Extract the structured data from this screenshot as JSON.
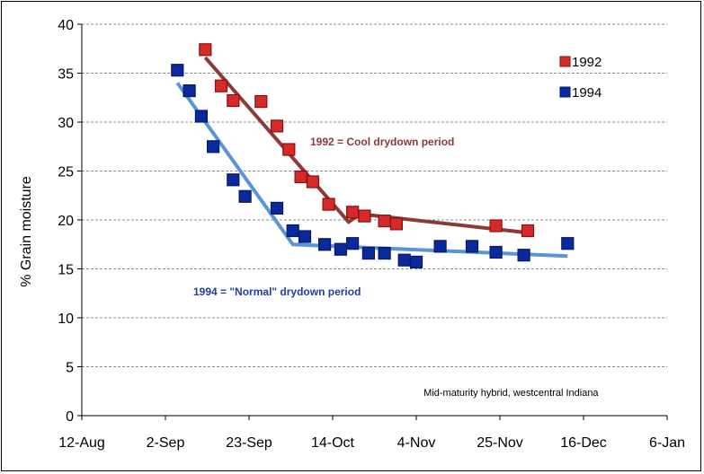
{
  "chart_data": {
    "type": "scatter",
    "ylabel": "% Grain moisture",
    "xlabel": "",
    "title": "",
    "x_tick_labels": [
      "12-Aug",
      "2-Sep",
      "23-Sep",
      "14-Oct",
      "4-Nov",
      "25-Nov",
      "16-Dec",
      "6-Jan"
    ],
    "x_ticks": [
      "2024-08-12",
      "2024-09-02",
      "2024-09-23",
      "2024-10-14",
      "2024-11-04",
      "2024-11-25",
      "2024-12-16",
      "2025-01-06"
    ],
    "y_ticks": [
      0,
      5,
      10,
      15,
      20,
      25,
      30,
      35,
      40
    ],
    "xlim": [
      "2024-08-12",
      "2025-01-06"
    ],
    "ylim": [
      0,
      40
    ],
    "grid": "horizontal dashed",
    "legend_position": "top-right",
    "series": [
      {
        "name": "1992",
        "color": "#d42a2a",
        "edge_color": "#8b1010",
        "points": [
          [
            "2024-09-12",
            37.4
          ],
          [
            "2024-09-16",
            33.7
          ],
          [
            "2024-09-19",
            32.2
          ],
          [
            "2024-09-26",
            32.1
          ],
          [
            "2024-09-30",
            29.6
          ],
          [
            "2024-10-03",
            27.2
          ],
          [
            "2024-10-06",
            24.4
          ],
          [
            "2024-10-09",
            23.9
          ],
          [
            "2024-10-13",
            21.6
          ],
          [
            "2024-10-19",
            20.8
          ],
          [
            "2024-10-22",
            20.4
          ],
          [
            "2024-10-27",
            19.9
          ],
          [
            "2024-10-30",
            19.6
          ],
          [
            "2024-11-24",
            19.4
          ],
          [
            "2024-12-02",
            18.9
          ]
        ],
        "trend_color": "#8b3a3a",
        "trend": [
          [
            "2024-09-12",
            36.6
          ],
          [
            "2024-10-18",
            19.8
          ],
          [
            "2024-10-21",
            20.6
          ],
          [
            "2024-12-02",
            18.7
          ]
        ]
      },
      {
        "name": "1994",
        "color": "#0a2a9c",
        "edge_color": "#06186a",
        "points": [
          [
            "2024-09-05",
            35.3
          ],
          [
            "2024-09-08",
            33.2
          ],
          [
            "2024-09-11",
            30.6
          ],
          [
            "2024-09-14",
            27.5
          ],
          [
            "2024-09-19",
            24.1
          ],
          [
            "2024-09-22",
            22.4
          ],
          [
            "2024-09-30",
            21.2
          ],
          [
            "2024-10-04",
            18.9
          ],
          [
            "2024-10-07",
            18.3
          ],
          [
            "2024-10-12",
            17.5
          ],
          [
            "2024-10-16",
            17.0
          ],
          [
            "2024-10-19",
            17.6
          ],
          [
            "2024-10-23",
            16.6
          ],
          [
            "2024-10-27",
            16.6
          ],
          [
            "2024-11-01",
            15.9
          ],
          [
            "2024-11-04",
            15.7
          ],
          [
            "2024-11-10",
            17.3
          ],
          [
            "2024-11-18",
            17.3
          ],
          [
            "2024-11-24",
            16.7
          ],
          [
            "2024-12-01",
            16.4
          ],
          [
            "2024-12-12",
            17.6
          ]
        ],
        "trend_color": "#5b95d6",
        "trend": [
          [
            "2024-09-05",
            34.0
          ],
          [
            "2024-10-04",
            17.5
          ],
          [
            "2024-12-12",
            16.3
          ]
        ]
      }
    ],
    "annotations": [
      {
        "text": "1992 = Cool drydown period",
        "x": "2024-10-14",
        "y": 27.6,
        "color": "#8b3a3a"
      },
      {
        "text": "1994 = \"Normal\" drydown period",
        "x": "2024-09-09",
        "y": 12.3,
        "color": "#1f3f9c"
      },
      {
        "text": "Mid-maturity hybrid, westcentral Indiana",
        "x": "2024-11-24",
        "y": 2.0,
        "color": "#000000"
      }
    ]
  }
}
